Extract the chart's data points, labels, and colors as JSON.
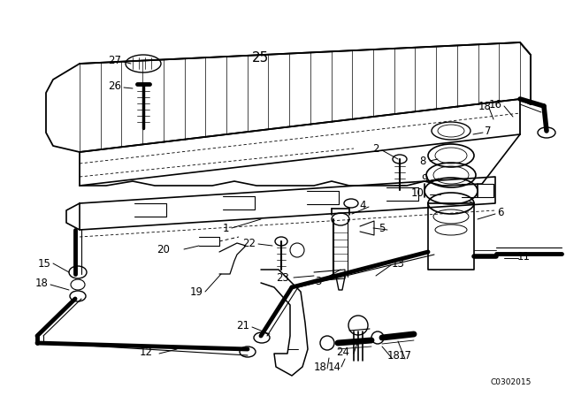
{
  "bg_color": "#ffffff",
  "line_color": "#000000",
  "fig_width": 6.4,
  "fig_height": 4.48,
  "dpi": 100,
  "watermark": "C0302015",
  "lw_main": 1.2,
  "lw_thin": 0.7,
  "lw_thick": 2.0,
  "fontsize_label": 8.5,
  "fontsize_big": 11
}
